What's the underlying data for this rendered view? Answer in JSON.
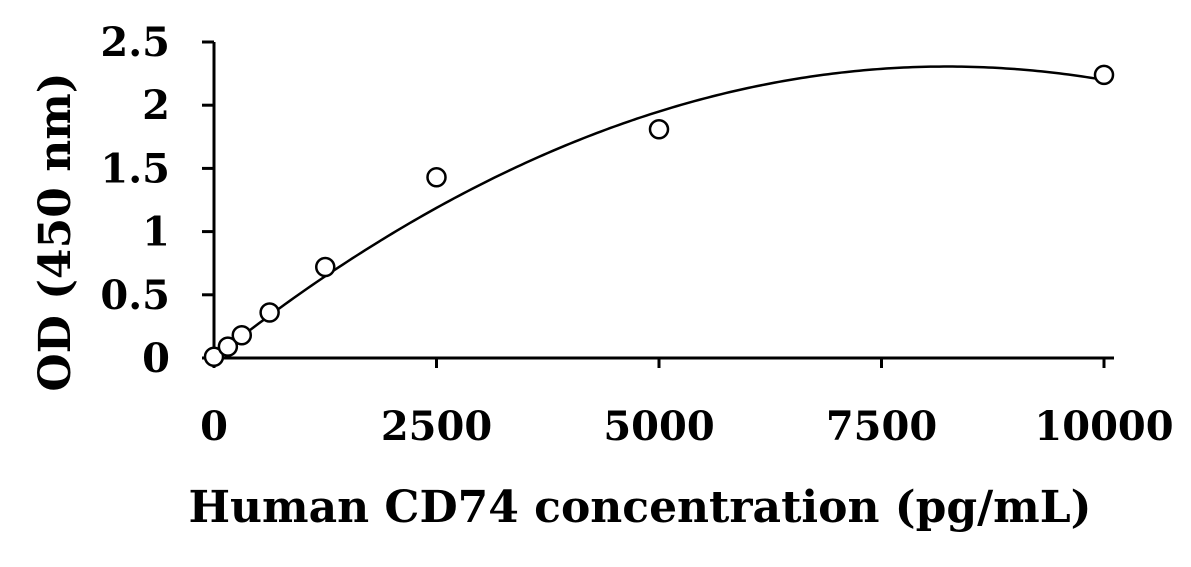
{
  "chart_data": {
    "type": "scatter",
    "title": "",
    "xlabel": "Human CD74 concentration (pg/mL)",
    "ylabel": "OD (450 nm)",
    "xlim": [
      0,
      10000
    ],
    "ylim": [
      0,
      2.5
    ],
    "x_ticks": [
      0,
      2500,
      5000,
      7500,
      10000
    ],
    "x_tick_labels": [
      "0",
      "2500",
      "5000",
      "7500",
      "10000"
    ],
    "y_ticks": [
      0,
      0.5,
      1,
      1.5,
      2,
      2.5
    ],
    "y_tick_labels": [
      "0",
      "0.5",
      "1",
      "1.5",
      "2",
      "2.5"
    ],
    "grid": false,
    "legend": "none",
    "series": [
      {
        "marker": "open-circle",
        "x": [
          0,
          156,
          312,
          625,
          1250,
          2500,
          5000,
          10000
        ],
        "y": [
          0.01,
          0.09,
          0.18,
          0.36,
          0.72,
          1.43,
          1.81,
          2.24
        ]
      }
    ],
    "trendline": {
      "type": "polynomial-2",
      "coefficients": {
        "a": -3.4e-08,
        "b": 0.00056,
        "c": 0.0
      }
    }
  }
}
